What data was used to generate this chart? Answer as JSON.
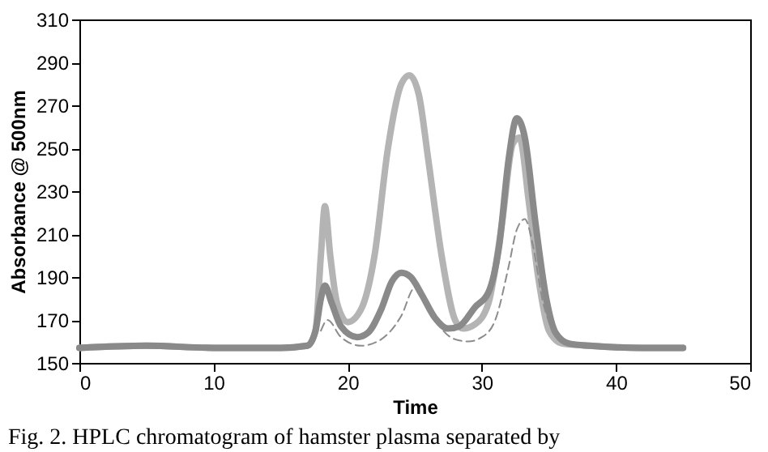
{
  "chart_data": {
    "type": "line",
    "xlabel": "Time",
    "ylabel": "Absorbance @ 500nm",
    "xlim": [
      0,
      50
    ],
    "ylim": [
      150,
      310
    ],
    "xticks": [
      0,
      10,
      20,
      30,
      40,
      50
    ],
    "yticks": [
      150,
      170,
      190,
      210,
      230,
      250,
      270,
      290,
      310
    ],
    "grid": false,
    "annotations": [
      "Fig. 2. HPLC chromatogram of hamster plasma separated by"
    ],
    "series": [
      {
        "color": "#b4b4b4",
        "line_style": "solid",
        "x": [
          0,
          5,
          10,
          15,
          17,
          17.6,
          18,
          18.3,
          18.7,
          19.2,
          20,
          21,
          22,
          23,
          24,
          24.6,
          25.3,
          26,
          27,
          28,
          28.6,
          29.5,
          30.5,
          31.5,
          32.3,
          32.8,
          33.5,
          34.2,
          35,
          36,
          38,
          42,
          45
        ],
        "values": [
          157,
          158,
          157,
          157,
          158,
          165,
          200,
          223,
          200,
          178,
          169,
          175,
          200,
          250,
          280,
          284,
          275,
          245,
          200,
          170,
          166,
          168,
          178,
          215,
          252,
          255,
          225,
          190,
          165,
          159,
          158,
          157,
          157
        ]
      },
      {
        "color": "#8a8a8a",
        "line_style": "solid",
        "x": [
          0,
          5,
          10,
          15,
          17,
          17.6,
          18,
          18.3,
          18.8,
          19.5,
          20.7,
          21.5,
          22.5,
          23.3,
          24,
          24.7,
          25.5,
          26.5,
          27.5,
          28.3,
          29.5,
          30.5,
          31.3,
          32,
          32.6,
          33.2,
          34,
          34.8,
          35.5,
          36.5,
          38,
          42,
          45
        ],
        "values": [
          157,
          158,
          157,
          157,
          158,
          165,
          180,
          186,
          178,
          167,
          162,
          164,
          175,
          188,
          192,
          190,
          182,
          171,
          166,
          167,
          176,
          183,
          205,
          245,
          264,
          255,
          215,
          180,
          164,
          159,
          158,
          157,
          157
        ]
      },
      {
        "color": "#8c8c8c",
        "line_style": "dashed",
        "x": [
          18,
          18.5,
          19.5,
          21,
          22.5,
          24,
          25,
          26,
          27,
          28,
          29,
          30,
          31,
          32,
          32.6,
          33.2,
          33.8,
          34.5,
          35.5
        ],
        "values": [
          165,
          170,
          162,
          158,
          161,
          172,
          185,
          178,
          166,
          161,
          160,
          162,
          170,
          195,
          212,
          217,
          205,
          180,
          162
        ]
      }
    ]
  }
}
